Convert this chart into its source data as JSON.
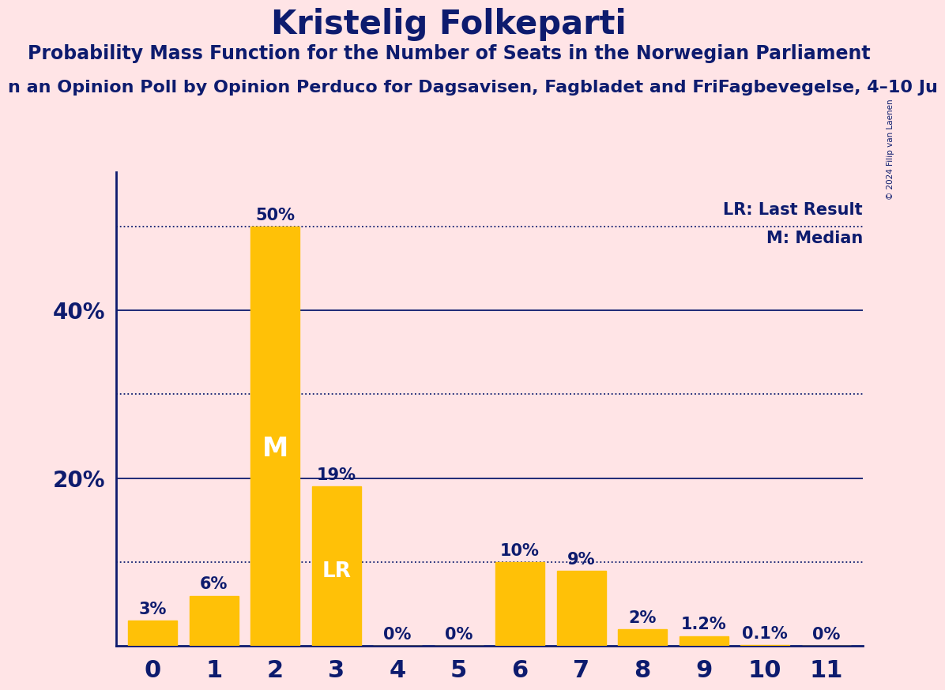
{
  "title": "Kristelig Folkeparti",
  "subtitle": "Probability Mass Function for the Number of Seats in the Norwegian Parliament",
  "subsubtitle": "n an Opinion Poll by Opinion Perduco for Dagsavisen, Fagbladet and FriFagbevegelse, 4–10 Ju",
  "copyright": "© 2024 Filip van Laenen",
  "categories": [
    0,
    1,
    2,
    3,
    4,
    5,
    6,
    7,
    8,
    9,
    10,
    11
  ],
  "values": [
    0.03,
    0.06,
    0.5,
    0.19,
    0.0,
    0.0,
    0.1,
    0.09,
    0.02,
    0.012,
    0.001,
    0.0
  ],
  "bar_labels": [
    "3%",
    "6%",
    "50%",
    "19%",
    "0%",
    "0%",
    "10%",
    "9%",
    "2%",
    "1.2%",
    "0.1%",
    "0%"
  ],
  "bar_color": "#FFC107",
  "background_color": "#FFE4E6",
  "text_color": "#0D1B6E",
  "median_bar": 2,
  "lr_bar": 3,
  "median_label": "M",
  "lr_label": "LR",
  "legend_lr": "LR: Last Result",
  "legend_m": "M: Median",
  "solid_gridlines": [
    0.2,
    0.4
  ],
  "dotted_gridlines": [
    0.1,
    0.3,
    0.5
  ],
  "yticks": [
    0.0,
    0.2,
    0.4
  ],
  "ytick_labels": [
    "",
    "20%",
    "40%"
  ],
  "ylim": [
    0,
    0.565
  ],
  "title_fontsize": 30,
  "subtitle_fontsize": 17,
  "subsubtitle_fontsize": 16,
  "bar_label_fontsize": 15,
  "ylabel_fontsize": 20,
  "xlabel_fontsize": 22,
  "legend_fontsize": 15,
  "axis_color": "#0D1B6E"
}
